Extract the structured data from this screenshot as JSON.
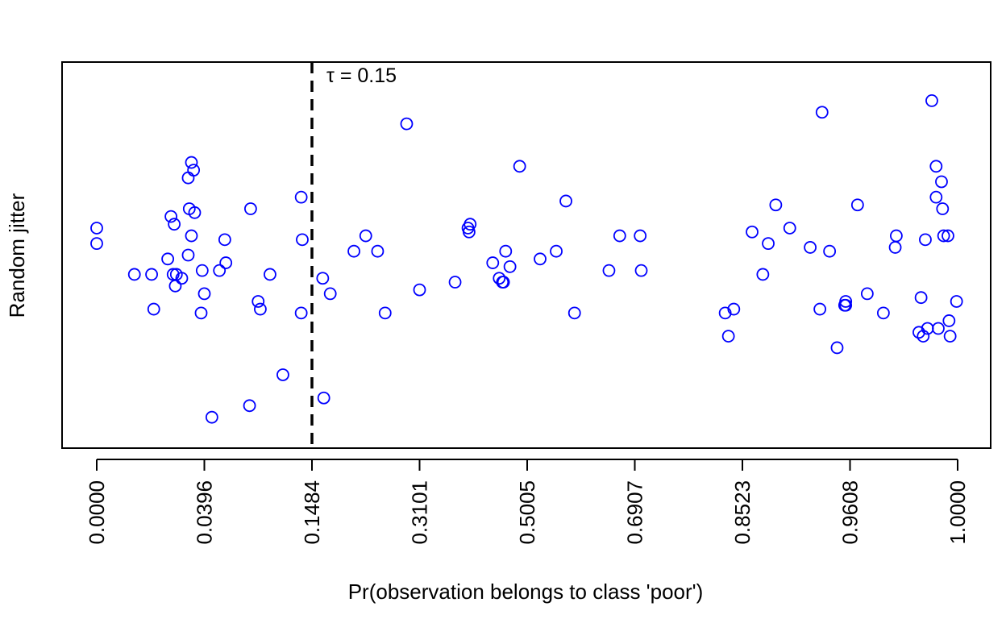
{
  "chart_data": {
    "type": "scatter",
    "xlabel": "Pr(observation belongs to class 'poor')",
    "ylabel": "Random jitter",
    "x_tick_labels": [
      "0.0000",
      "0.0396",
      "0.1484",
      "0.3101",
      "0.5005",
      "0.6907",
      "0.8523",
      "0.9608",
      "1.0000"
    ],
    "x_axis_note": "tick labels are quantiles of the predicted probability; axis is rank-based",
    "threshold": {
      "position_index": 2,
      "label": "τ = 0.15",
      "style": "dashed"
    },
    "marker_color": "#0000ff",
    "marker": "open-circle",
    "legend": "none",
    "grid": false,
    "points": [
      [
        0.0,
        0.57
      ],
      [
        0.0,
        0.53
      ],
      [
        0.35,
        0.45
      ],
      [
        0.51,
        0.45
      ],
      [
        0.53,
        0.36
      ],
      [
        0.66,
        0.49
      ],
      [
        0.69,
        0.6
      ],
      [
        0.72,
        0.58
      ],
      [
        0.71,
        0.45
      ],
      [
        0.73,
        0.42
      ],
      [
        0.74,
        0.45
      ],
      [
        0.79,
        0.44
      ],
      [
        0.85,
        0.7
      ],
      [
        0.86,
        0.62
      ],
      [
        0.85,
        0.5
      ],
      [
        0.88,
        0.55
      ],
      [
        0.88,
        0.74
      ],
      [
        0.9,
        0.72
      ],
      [
        0.91,
        0.61
      ],
      [
        0.97,
        0.35
      ],
      [
        0.98,
        0.46
      ],
      [
        1.0,
        0.4
      ],
      [
        1.07,
        0.08
      ],
      [
        1.14,
        0.46
      ],
      [
        1.19,
        0.54
      ],
      [
        1.2,
        0.48
      ],
      [
        1.42,
        0.11
      ],
      [
        1.43,
        0.62
      ],
      [
        1.5,
        0.38
      ],
      [
        1.52,
        0.36
      ],
      [
        1.61,
        0.45
      ],
      [
        1.73,
        0.19
      ],
      [
        1.9,
        0.35
      ],
      [
        1.91,
        0.54
      ],
      [
        1.9,
        0.65
      ],
      [
        2.1,
        0.44
      ],
      [
        2.11,
        0.13
      ],
      [
        2.17,
        0.4
      ],
      [
        2.39,
        0.51
      ],
      [
        2.5,
        0.55
      ],
      [
        2.61,
        0.51
      ],
      [
        2.68,
        0.35
      ],
      [
        2.88,
        0.84
      ],
      [
        3.0,
        0.41
      ],
      [
        3.33,
        0.43
      ],
      [
        3.45,
        0.57
      ],
      [
        3.46,
        0.56
      ],
      [
        3.47,
        0.58
      ],
      [
        3.68,
        0.48
      ],
      [
        3.74,
        0.44
      ],
      [
        3.77,
        0.43
      ],
      [
        3.78,
        0.43
      ],
      [
        3.8,
        0.51
      ],
      [
        3.84,
        0.47
      ],
      [
        3.93,
        0.73
      ],
      [
        4.12,
        0.49
      ],
      [
        4.27,
        0.51
      ],
      [
        4.36,
        0.64
      ],
      [
        4.44,
        0.35
      ],
      [
        4.76,
        0.46
      ],
      [
        4.86,
        0.55
      ],
      [
        5.05,
        0.55
      ],
      [
        5.06,
        0.46
      ],
      [
        5.84,
        0.35
      ],
      [
        5.87,
        0.29
      ],
      [
        5.92,
        0.36
      ],
      [
        6.09,
        0.56
      ],
      [
        6.19,
        0.45
      ],
      [
        6.24,
        0.53
      ],
      [
        6.31,
        0.63
      ],
      [
        6.44,
        0.57
      ],
      [
        6.63,
        0.52
      ],
      [
        6.72,
        0.36
      ],
      [
        6.74,
        0.87
      ],
      [
        6.81,
        0.51
      ],
      [
        6.88,
        0.26
      ],
      [
        6.95,
        0.37
      ],
      [
        6.96,
        0.38
      ],
      [
        6.96,
        0.37
      ],
      [
        7.07,
        0.63
      ],
      [
        7.16,
        0.4
      ],
      [
        7.31,
        0.35
      ],
      [
        7.42,
        0.52
      ],
      [
        7.43,
        0.55
      ],
      [
        7.64,
        0.3
      ],
      [
        7.66,
        0.39
      ],
      [
        7.68,
        0.29
      ],
      [
        7.7,
        0.54
      ],
      [
        7.72,
        0.31
      ],
      [
        7.76,
        0.9
      ],
      [
        7.8,
        0.73
      ],
      [
        7.8,
        0.65
      ],
      [
        7.82,
        0.31
      ],
      [
        7.85,
        0.69
      ],
      [
        7.86,
        0.62
      ],
      [
        7.87,
        0.55
      ],
      [
        7.92,
        0.33
      ],
      [
        7.91,
        0.55
      ],
      [
        7.93,
        0.29
      ],
      [
        7.99,
        0.38
      ]
    ]
  }
}
